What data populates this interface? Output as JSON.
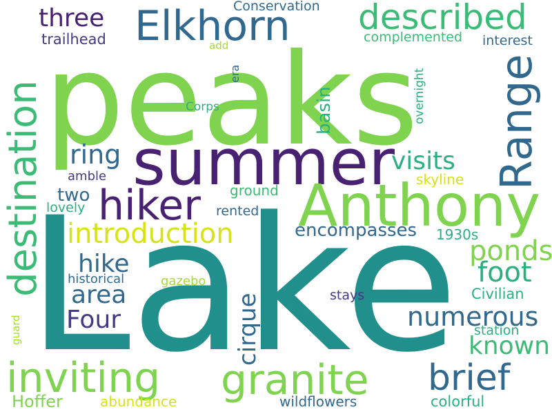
{
  "palette": {
    "lime": "#7fd34e",
    "teal": "#21908d",
    "indigo": "#482173",
    "navy": "#31688e",
    "green": "#3bbb75",
    "yellow": "#d7e219",
    "sea": "#2ab07f",
    "violet": "#443a83",
    "light-green": "#a5db36"
  },
  "words": {
    "peaks": "peaks",
    "lake": "Lake",
    "summer": "summer",
    "anthony": "Anthony",
    "elkhorn": "Elkhorn",
    "described": "described",
    "destination": "destination",
    "range": "Range",
    "hiker": "hiker",
    "inviting": "inviting",
    "granite": "granite",
    "brief": "brief",
    "three": "three",
    "conservation": "Conservation",
    "trailhead": "trailhead",
    "complemented": "complemented",
    "interest": "interest",
    "add": "add",
    "era": "era",
    "overnight": "overnight",
    "basin": "basin",
    "corps": "Corps",
    "ring": "ring",
    "visits": "visits",
    "amble": "amble",
    "skyline": "skyline",
    "two": "two",
    "ground": "ground",
    "lovely": "lovely",
    "rented": "rented",
    "introduction": "introduction",
    "encompasses": "encompasses",
    "nineteen_thirties": "1930s",
    "ponds": "ponds",
    "hike": "hike",
    "foot": "foot",
    "area": "area",
    "historical": "historical",
    "gazebo": "gazebo",
    "civilian": "Civilian",
    "four": "Four",
    "cirque": "cirque",
    "stays": "stays",
    "numerous": "numerous",
    "guard": "guard",
    "station": "station",
    "known": "known",
    "hoffer": "Hoffer",
    "abundance": "abundance",
    "wildflowers": "wildflowers",
    "colorful": "colorful"
  }
}
